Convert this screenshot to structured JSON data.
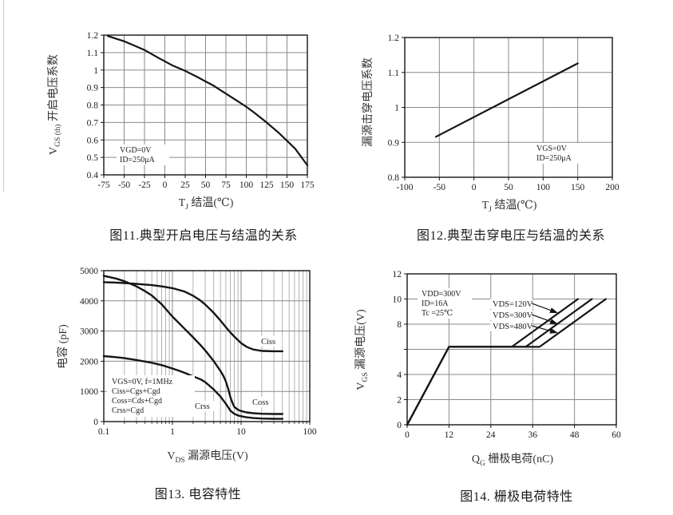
{
  "page": {
    "background": "#ffffff",
    "grid_color": "#8a8a8a",
    "curve_color": "#151515"
  },
  "chart_data": [
    {
      "id": "fig11",
      "type": "line",
      "x_scale": "linear",
      "title": "图11.典型开启电压与结温的关系",
      "xlabel": {
        "pre": "T",
        "sub": "J",
        "post": " 结温(℃)"
      },
      "ylabel": {
        "pre": "V",
        "sub": "GS (th)",
        "post": " 开启电压系数"
      },
      "xlim": [
        -75,
        175
      ],
      "ylim": [
        0.4,
        1.2
      ],
      "x_ticks": [
        -75,
        -50,
        -25,
        0,
        25,
        50,
        75,
        100,
        125,
        150,
        175
      ],
      "x_tick_labels": [
        "-75",
        "-50",
        "-25",
        "0",
        "25",
        "50",
        "75",
        "100",
        "125",
        "150",
        "175"
      ],
      "y_ticks": [
        0.4,
        0.5,
        0.6,
        0.7,
        0.8,
        0.9,
        1.0,
        1.1,
        1.2
      ],
      "y_tick_labels": [
        "0.4",
        "0.5",
        "0.6",
        "0.7",
        "0.8",
        "0.9",
        "1",
        "1.1",
        "1.2"
      ],
      "conditions": [
        "VGD=0V",
        "ID=250μA"
      ],
      "grid": true,
      "legend_position": "none",
      "series": [
        {
          "name": "VGS(th)-coefficient",
          "points": [
            [
              -70,
              1.195
            ],
            [
              -60,
              1.18
            ],
            [
              -50,
              1.165
            ],
            [
              -40,
              1.145
            ],
            [
              -25,
              1.115
            ],
            [
              -10,
              1.075
            ],
            [
              0,
              1.05
            ],
            [
              10,
              1.025
            ],
            [
              25,
              0.995
            ],
            [
              40,
              0.96
            ],
            [
              50,
              0.935
            ],
            [
              60,
              0.91
            ],
            [
              75,
              0.865
            ],
            [
              90,
              0.82
            ],
            [
              100,
              0.79
            ],
            [
              110,
              0.755
            ],
            [
              125,
              0.7
            ],
            [
              140,
              0.64
            ],
            [
              150,
              0.595
            ],
            [
              160,
              0.55
            ],
            [
              175,
              0.455
            ]
          ]
        }
      ]
    },
    {
      "id": "fig12",
      "type": "line",
      "x_scale": "linear",
      "title": "图12.典型击穿电压与结温的关系",
      "xlabel": {
        "pre": "T",
        "sub": "J",
        "post": " 结温(℃)"
      },
      "ylabel": {
        "pre": "漏源击穿电压系数",
        "sub": "",
        "post": ""
      },
      "xlim": [
        -100,
        200
      ],
      "ylim": [
        0.8,
        1.2
      ],
      "x_ticks": [
        -100,
        -50,
        0,
        50,
        100,
        150,
        200
      ],
      "x_tick_labels": [
        "-100",
        "-50",
        "0",
        "50",
        "100",
        "150",
        "200"
      ],
      "y_ticks": [
        0.8,
        0.9,
        1.0,
        1.1,
        1.2
      ],
      "y_tick_labels": [
        "0.8",
        "0.9",
        "1",
        "1.1",
        "1.2"
      ],
      "conditions": [
        "VGS=0V",
        "ID=250μA"
      ],
      "grid": true,
      "legend_position": "none",
      "series": [
        {
          "name": "breakdown-voltage-coefficient",
          "points": [
            [
              -55,
              0.916
            ],
            [
              150,
              1.126
            ]
          ]
        }
      ]
    },
    {
      "id": "fig13",
      "type": "line",
      "x_scale": "log",
      "title": "图13. 电容特性",
      "xlabel": {
        "pre": "V",
        "sub": "DS",
        "post": " 漏源电压(V)"
      },
      "ylabel": {
        "pre": "电容 (pF)",
        "sub": "",
        "post": ""
      },
      "xlim": [
        0.1,
        100
      ],
      "ylim": [
        0,
        5000
      ],
      "x_ticks": [
        0.1,
        1,
        10,
        100
      ],
      "x_tick_labels": [
        "0.1",
        "1",
        "10",
        "100"
      ],
      "y_ticks": [
        0,
        1000,
        2000,
        3000,
        4000,
        5000
      ],
      "y_tick_labels": [
        "0",
        "1000",
        "2000",
        "3000",
        "4000",
        "5000"
      ],
      "conditions": [
        "VGS=0V, f=1MHz",
        "Ciss=Cgs+Cgd",
        "Coss=Cds+Cgd",
        "Crss=Cgd"
      ],
      "grid": true,
      "legend_position": "on-curve",
      "series": [
        {
          "name": "Ciss",
          "points": [
            [
              0.1,
              4620
            ],
            [
              0.15,
              4605
            ],
            [
              0.2,
              4590
            ],
            [
              0.3,
              4560
            ],
            [
              0.5,
              4520
            ],
            [
              0.7,
              4480
            ],
            [
              1,
              4420
            ],
            [
              1.5,
              4310
            ],
            [
              2,
              4170
            ],
            [
              2.5,
              4030
            ],
            [
              3,
              3880
            ],
            [
              4,
              3600
            ],
            [
              5,
              3350
            ],
            [
              6,
              3130
            ],
            [
              7,
              2950
            ],
            [
              8,
              2810
            ],
            [
              10,
              2600
            ],
            [
              12,
              2480
            ],
            [
              15,
              2390
            ],
            [
              20,
              2340
            ],
            [
              30,
              2330
            ],
            [
              40,
              2330
            ]
          ]
        },
        {
          "name": "Coss",
          "points": [
            [
              0.1,
              4830
            ],
            [
              0.15,
              4740
            ],
            [
              0.2,
              4650
            ],
            [
              0.3,
              4480
            ],
            [
              0.4,
              4320
            ],
            [
              0.5,
              4180
            ],
            [
              0.7,
              3880
            ],
            [
              1,
              3480
            ],
            [
              1.3,
              3220
            ],
            [
              1.6,
              3010
            ],
            [
              2,
              2790
            ],
            [
              2.5,
              2560
            ],
            [
              3,
              2360
            ],
            [
              4,
              2000
            ],
            [
              5,
              1680
            ],
            [
              5.5,
              1520
            ],
            [
              6,
              1330
            ],
            [
              6.5,
              1080
            ],
            [
              7,
              800
            ],
            [
              7.5,
              610
            ],
            [
              8,
              480
            ],
            [
              9,
              395
            ],
            [
              10,
              350
            ],
            [
              12,
              305
            ],
            [
              15,
              278
            ],
            [
              20,
              260
            ],
            [
              30,
              252
            ],
            [
              40,
              252
            ]
          ]
        },
        {
          "name": "Crss",
          "points": [
            [
              0.1,
              2170
            ],
            [
              0.15,
              2135
            ],
            [
              0.2,
              2100
            ],
            [
              0.3,
              2040
            ],
            [
              0.5,
              1950
            ],
            [
              0.7,
              1870
            ],
            [
              1,
              1760
            ],
            [
              1.3,
              1670
            ],
            [
              1.6,
              1590
            ],
            [
              2,
              1500
            ],
            [
              2.6,
              1395
            ],
            [
              3,
              1310
            ],
            [
              4,
              1060
            ],
            [
              5,
              830
            ],
            [
              6,
              590
            ],
            [
              6.5,
              470
            ],
            [
              7,
              360
            ],
            [
              8,
              255
            ],
            [
              9,
              205
            ],
            [
              10,
              178
            ],
            [
              12,
              142
            ],
            [
              15,
              116
            ],
            [
              20,
              100
            ],
            [
              30,
              92
            ],
            [
              40,
              90
            ]
          ]
        }
      ]
    },
    {
      "id": "fig14",
      "type": "line",
      "x_scale": "linear",
      "title": "图14. 栅极电荷特性",
      "xlabel": {
        "pre": "Q",
        "sub": "G",
        "post": " 栅极电荷(nC)"
      },
      "ylabel": {
        "pre": "V",
        "sub": "GS",
        "post": " 漏源电压(V)"
      },
      "xlim": [
        0,
        60
      ],
      "ylim": [
        0,
        12
      ],
      "x_ticks": [
        0,
        12,
        24,
        36,
        48,
        60
      ],
      "x_tick_labels": [
        "0",
        "12",
        "24",
        "36",
        "48",
        "60"
      ],
      "y_ticks": [
        0,
        2,
        4,
        6,
        8,
        10,
        12
      ],
      "y_tick_labels": [
        "0",
        "2",
        "4",
        "",
        "8",
        "10",
        "12"
      ],
      "conditions": [
        "VDD=300V",
        "ID=16A",
        "Tc =25℃"
      ],
      "grid": true,
      "legend_position": "labels-with-arrows",
      "series": [
        {
          "name": "VDS=120V",
          "points": [
            [
              0,
              0
            ],
            [
              12,
              6.2
            ],
            [
              30,
              6.2
            ],
            [
              49,
              10
            ]
          ]
        },
        {
          "name": "VDS=300V",
          "points": [
            [
              0,
              0
            ],
            [
              12,
              6.2
            ],
            [
              34,
              6.2
            ],
            [
              53,
              10
            ]
          ]
        },
        {
          "name": "VDS=480V",
          "points": [
            [
              0,
              0
            ],
            [
              12,
              6.2
            ],
            [
              38,
              6.2
            ],
            [
              57,
              10
            ]
          ]
        }
      ]
    }
  ]
}
